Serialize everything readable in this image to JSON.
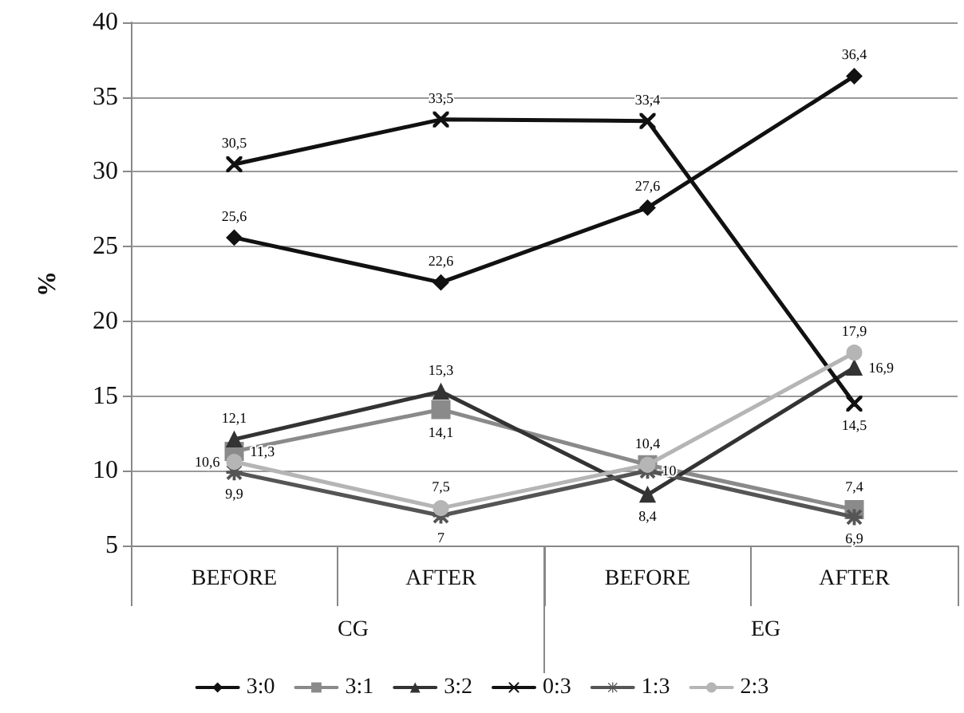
{
  "chart_data": {
    "type": "line",
    "categories": [
      "BEFORE",
      "AFTER",
      "BEFORE",
      "AFTER"
    ],
    "annotations": [
      "CG",
      "EG"
    ],
    "ylabel": "%",
    "ylim": [
      5,
      40
    ],
    "yticks": [
      5,
      10,
      15,
      20,
      25,
      30,
      35,
      40
    ],
    "grid": "y",
    "legend": "bottom",
    "series": [
      {
        "name": "3:0",
        "color": "#111111",
        "marker": "diamond",
        "values": [
          25.6,
          22.6,
          27.6,
          36.4
        ],
        "value_labels": [
          "25,6",
          "22,6",
          "27,6",
          "36,4"
        ]
      },
      {
        "name": "3:1",
        "color": "#8a8a8a",
        "marker": "square",
        "values": [
          11.3,
          14.1,
          10.4,
          7.4
        ],
        "value_labels": [
          "11,3",
          "14,1",
          null,
          "7,4"
        ]
      },
      {
        "name": "3:2",
        "color": "#333333",
        "marker": "triangle",
        "values": [
          12.1,
          15.3,
          8.4,
          16.9
        ],
        "value_labels": [
          "12,1",
          "15,3",
          "8,4",
          "16,9"
        ]
      },
      {
        "name": "0:3",
        "color": "#111111",
        "marker": "cross",
        "values": [
          30.5,
          33.5,
          33.4,
          14.5
        ],
        "value_labels": [
          "30,5",
          "33,5",
          "33,4",
          "14,5"
        ]
      },
      {
        "name": "1:3",
        "color": "#555555",
        "marker": "star",
        "values": [
          9.9,
          7,
          10,
          6.9
        ],
        "value_labels": [
          "9,9",
          "7",
          "10",
          "6,9"
        ]
      },
      {
        "name": "2:3",
        "color": "#b5b5b5",
        "marker": "circle",
        "values": [
          10.6,
          7.5,
          10.4,
          17.9
        ],
        "value_labels": [
          "10,6",
          "7,5",
          "10,4",
          "17,9"
        ]
      }
    ]
  }
}
